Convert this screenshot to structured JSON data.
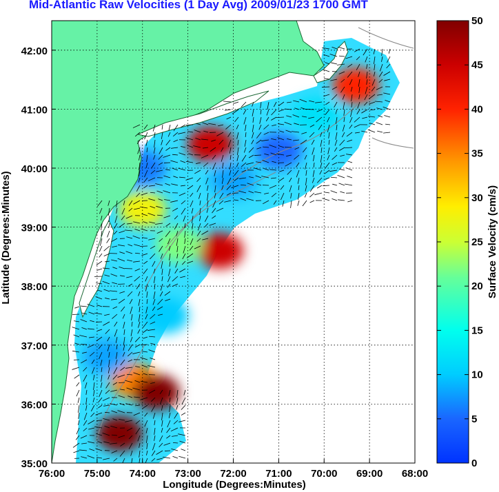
{
  "chart_data": {
    "type": "heatmap",
    "title": "Mid-Atlantic Raw Velocities (1 Day Avg) 2009/01/23 1700 GMT",
    "xlabel": "Longitude (Degrees:Minutes)",
    "ylabel": "Latitude (Degrees:Minutes)",
    "x_ticks": [
      "76:00",
      "75:00",
      "74:00",
      "73:00",
      "72:00",
      "71:00",
      "70:00",
      "69:00",
      "68:00"
    ],
    "y_ticks": [
      "35:00",
      "36:00",
      "37:00",
      "38:00",
      "39:00",
      "40:00",
      "41:00",
      "42:00"
    ],
    "xlim": [
      -76,
      -68
    ],
    "ylim": [
      35,
      42.5
    ],
    "grid": true,
    "colorbar": {
      "label": "Surface Velocity (cm/s)",
      "min": 0,
      "max": 50,
      "ticks": [
        "0",
        "5",
        "10",
        "15",
        "20",
        "25",
        "30",
        "35",
        "40",
        "45",
        "50"
      ]
    },
    "velocity_regions": [
      {
        "lon": -69.3,
        "lat": 41.4,
        "speed": 40
      },
      {
        "lon": -72.5,
        "lat": 40.4,
        "speed": 45
      },
      {
        "lon": -74.0,
        "lat": 39.3,
        "speed": 28
      },
      {
        "lon": -72.3,
        "lat": 38.6,
        "speed": 45
      },
      {
        "lon": -73.2,
        "lat": 38.7,
        "speed": 22
      },
      {
        "lon": -74.2,
        "lat": 36.4,
        "speed": 35
      },
      {
        "lon": -74.5,
        "lat": 35.5,
        "speed": 50
      },
      {
        "lon": -73.7,
        "lat": 36.2,
        "speed": 50
      },
      {
        "lon": -71.0,
        "lat": 40.3,
        "speed": 5
      },
      {
        "lon": -74.0,
        "lat": 40.0,
        "speed": 6
      },
      {
        "lon": -72.0,
        "lat": 39.8,
        "speed": 8
      },
      {
        "lon": -73.5,
        "lat": 37.5,
        "speed": 10
      },
      {
        "lon": -74.8,
        "lat": 36.8,
        "speed": 8
      },
      {
        "lon": -70.2,
        "lat": 40.9,
        "speed": 12
      }
    ]
  }
}
